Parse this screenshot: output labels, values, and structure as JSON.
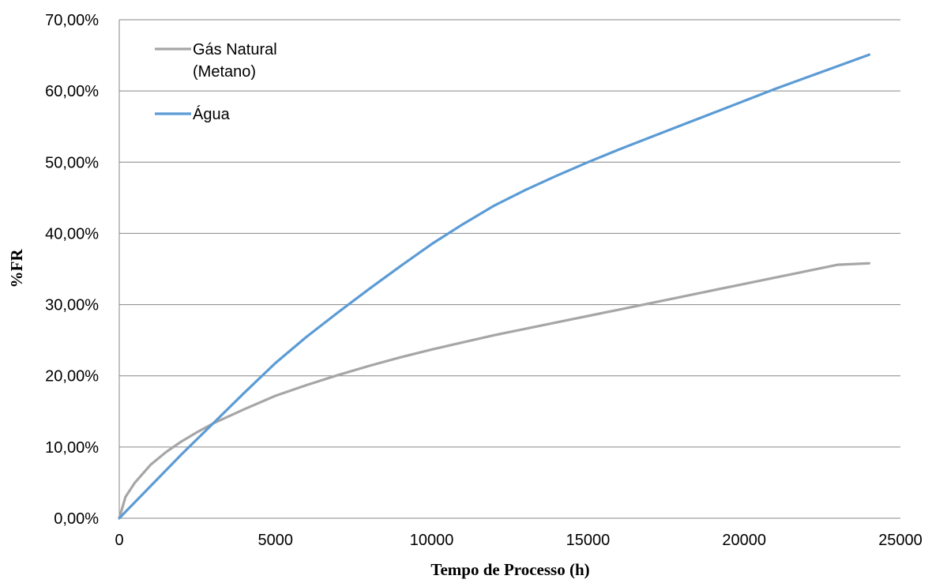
{
  "chart_data": {
    "type": "line",
    "title": "",
    "xlabel": "Tempo de Processo (h)",
    "ylabel": "%FR",
    "xlim": [
      0,
      25000
    ],
    "ylim": [
      0,
      0.7
    ],
    "x_ticks": [
      0,
      5000,
      10000,
      15000,
      20000,
      25000
    ],
    "x_tick_labels": [
      "0",
      "5000",
      "10000",
      "15000",
      "20000",
      "25000"
    ],
    "y_ticks": [
      0,
      0.1,
      0.2,
      0.3,
      0.4,
      0.5,
      0.6,
      0.7
    ],
    "y_tick_labels": [
      "0,00%",
      "10,00%",
      "20,00%",
      "30,00%",
      "40,00%",
      "50,00%",
      "60,00%",
      "70,00%"
    ],
    "grid": "horizontal",
    "legend_position": "top-left",
    "series": [
      {
        "name_lines": [
          "Gás Natural",
          "(Metano)"
        ],
        "color": "#a6a6a6",
        "x": [
          0,
          200,
          500,
          1000,
          1500,
          2000,
          2500,
          3000,
          4000,
          5000,
          6000,
          7000,
          8000,
          9000,
          10000,
          11000,
          12000,
          13000,
          14000,
          15000,
          16000,
          17000,
          18000,
          19000,
          20000,
          21000,
          22000,
          23000,
          24000
        ],
        "y": [
          0,
          0.03,
          0.05,
          0.075,
          0.093,
          0.108,
          0.121,
          0.133,
          0.153,
          0.172,
          0.187,
          0.201,
          0.214,
          0.226,
          0.237,
          0.247,
          0.257,
          0.266,
          0.275,
          0.284,
          0.293,
          0.302,
          0.311,
          0.32,
          0.329,
          0.338,
          0.347,
          0.356,
          0.358
        ]
      },
      {
        "name": "Água",
        "color": "#5b9bd5",
        "x": [
          0,
          1000,
          2000,
          3000,
          4000,
          5000,
          6000,
          7000,
          8000,
          9000,
          10000,
          11000,
          12000,
          13000,
          14000,
          15000,
          16000,
          17000,
          18000,
          19000,
          20000,
          21000,
          22000,
          23000,
          24000
        ],
        "y": [
          0,
          0.045,
          0.09,
          0.133,
          0.176,
          0.218,
          0.255,
          0.289,
          0.322,
          0.354,
          0.385,
          0.413,
          0.439,
          0.461,
          0.481,
          0.5,
          0.518,
          0.535,
          0.552,
          0.569,
          0.586,
          0.603,
          0.619,
          0.635,
          0.651
        ]
      }
    ]
  }
}
